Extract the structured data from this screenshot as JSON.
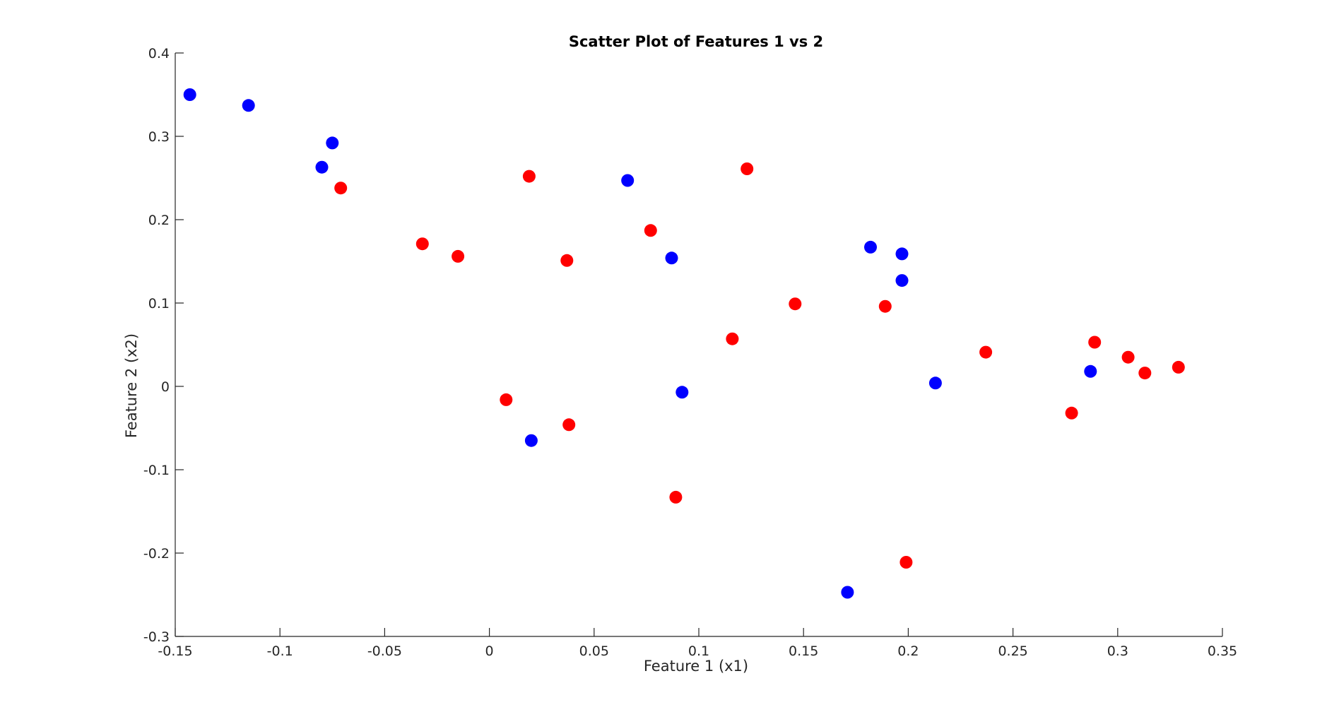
{
  "chart_data": {
    "type": "scatter",
    "title": "Scatter Plot of Features 1 vs 2",
    "xlabel": "Feature 1 (x1)",
    "ylabel": "Feature 2 (x2)",
    "xlim": [
      -0.15,
      0.35
    ],
    "ylim": [
      -0.3,
      0.4
    ],
    "xticks": [
      -0.15,
      -0.1,
      -0.05,
      0,
      0.05,
      0.1,
      0.15,
      0.2,
      0.25,
      0.3,
      0.35
    ],
    "xtick_labels": [
      "-0.15",
      "-0.1",
      "-0.05",
      "0",
      "0.05",
      "0.1",
      "0.15",
      "0.2",
      "0.25",
      "0.3",
      "0.35"
    ],
    "yticks": [
      -0.3,
      -0.2,
      -0.1,
      0,
      0.1,
      0.2,
      0.3,
      0.4
    ],
    "ytick_labels": [
      "-0.3",
      "-0.2",
      "-0.1",
      "0",
      "0.1",
      "0.2",
      "0.3",
      "0.4"
    ],
    "grid": false,
    "legend": "none",
    "series": [
      {
        "color": "#0000ff",
        "points": [
          [
            -0.143,
            0.35
          ],
          [
            -0.115,
            0.337
          ],
          [
            -0.075,
            0.292
          ],
          [
            -0.08,
            0.263
          ],
          [
            0.066,
            0.247
          ],
          [
            0.087,
            0.154
          ],
          [
            0.182,
            0.167
          ],
          [
            0.197,
            0.159
          ],
          [
            0.197,
            0.127
          ],
          [
            0.213,
            0.004
          ],
          [
            0.287,
            0.018
          ],
          [
            0.092,
            -0.007
          ],
          [
            0.02,
            -0.065
          ],
          [
            0.171,
            -0.247
          ]
        ]
      },
      {
        "color": "#ff0000",
        "points": [
          [
            -0.071,
            0.238
          ],
          [
            -0.032,
            0.171
          ],
          [
            -0.015,
            0.156
          ],
          [
            0.019,
            0.252
          ],
          [
            0.037,
            0.151
          ],
          [
            0.077,
            0.187
          ],
          [
            0.123,
            0.261
          ],
          [
            0.146,
            0.099
          ],
          [
            0.116,
            0.057
          ],
          [
            0.189,
            0.096
          ],
          [
            0.237,
            0.041
          ],
          [
            0.289,
            0.053
          ],
          [
            0.305,
            0.035
          ],
          [
            0.313,
            0.016
          ],
          [
            0.329,
            0.023
          ],
          [
            0.278,
            -0.032
          ],
          [
            0.008,
            -0.016
          ],
          [
            0.038,
            -0.046
          ],
          [
            0.089,
            -0.133
          ],
          [
            0.199,
            -0.211
          ]
        ]
      }
    ]
  }
}
